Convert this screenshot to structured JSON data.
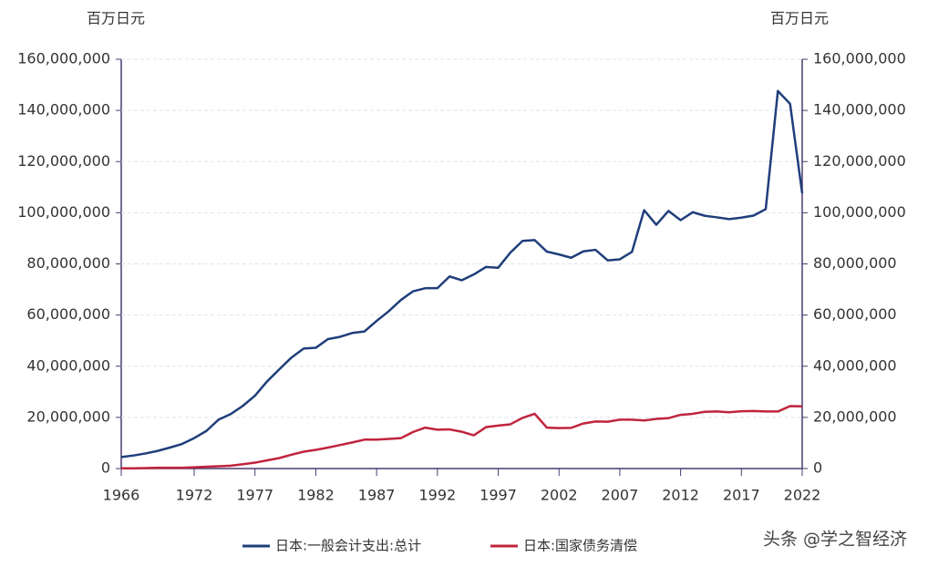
{
  "chart_data": {
    "type": "line",
    "y_unit_label": "百万日元",
    "y2_unit_label": "百万日元",
    "x": [
      1966,
      1967,
      1968,
      1969,
      1970,
      1971,
      1972,
      1973,
      1974,
      1975,
      1976,
      1977,
      1978,
      1979,
      1980,
      1981,
      1982,
      1983,
      1984,
      1985,
      1986,
      1987,
      1988,
      1989,
      1990,
      1991,
      1992,
      1993,
      1994,
      1995,
      1996,
      1997,
      1998,
      1999,
      2000,
      2001,
      2002,
      2003,
      2004,
      2005,
      2006,
      2007,
      2008,
      2009,
      2010,
      2011,
      2012,
      2013,
      2014,
      2015,
      2016,
      2017,
      2018,
      2019,
      2020,
      2021,
      2022
    ],
    "xlim": [
      1966,
      2022
    ],
    "xticks": [
      1966,
      1972,
      1977,
      1982,
      1987,
      1992,
      1997,
      2002,
      2007,
      2012,
      2017,
      2022
    ],
    "ylim": [
      0,
      160000000
    ],
    "y2lim": [
      0,
      160000000
    ],
    "yticks": [
      {
        "value": 0,
        "label": "0"
      },
      {
        "value": 20000000,
        "label": "20,000,000"
      },
      {
        "value": 40000000,
        "label": "40,000,000"
      },
      {
        "value": 60000000,
        "label": "60,000,000"
      },
      {
        "value": 80000000,
        "label": "80,000,000"
      },
      {
        "value": 100000000,
        "label": "100,000,000"
      },
      {
        "value": 120000000,
        "label": "120,000,000"
      },
      {
        "value": 140000000,
        "label": "140,000,000"
      },
      {
        "value": 160000000,
        "label": "160,000,000"
      }
    ],
    "y2ticks": [
      {
        "value": 0,
        "label": "0"
      },
      {
        "value": 20000000,
        "label": "20,000,000"
      },
      {
        "value": 40000000,
        "label": "40,000,000"
      },
      {
        "value": 60000000,
        "label": "60,000,000"
      },
      {
        "value": 80000000,
        "label": "80,000,000"
      },
      {
        "value": 100000000,
        "label": "100,000,000"
      },
      {
        "value": 120000000,
        "label": "120,000,000"
      },
      {
        "value": 140000000,
        "label": "140,000,000"
      },
      {
        "value": 160000000,
        "label": "160,000,000"
      }
    ],
    "grid": true,
    "series": [
      {
        "name": "日本:一般会计支出:总计",
        "color": "#1f3e7a",
        "values": [
          4500000,
          5100000,
          5900000,
          6900000,
          8200000,
          9600000,
          11900000,
          14700000,
          19100000,
          21300000,
          24500000,
          28500000,
          34100000,
          38800000,
          43400000,
          46900000,
          47200000,
          50600000,
          51500000,
          53000000,
          53600000,
          57700000,
          61500000,
          65900000,
          69300000,
          70500000,
          70500000,
          75100000,
          73600000,
          75900000,
          78800000,
          78500000,
          84400000,
          89000000,
          89300000,
          84800000,
          83700000,
          82400000,
          84900000,
          85500000,
          81400000,
          81800000,
          84700000,
          101000000,
          95300000,
          100700000,
          97100000,
          100200000,
          98800000,
          98200000,
          97500000,
          98100000,
          98900000,
          101400000,
          147600000,
          142600000,
          107600000
        ]
      },
      {
        "name": "日本:国家债务清偿",
        "color": "#c0243c",
        "values": [
          100000,
          100000,
          200000,
          300000,
          300000,
          300000,
          500000,
          700000,
          900000,
          1100000,
          1700000,
          2300000,
          3200000,
          4100000,
          5400000,
          6600000,
          7300000,
          8200000,
          9200000,
          10200000,
          11300000,
          11300000,
          11600000,
          11900000,
          14300000,
          16000000,
          15200000,
          15300000,
          14400000,
          13000000,
          16200000,
          16800000,
          17300000,
          19800000,
          21400000,
          16000000,
          15800000,
          15900000,
          17600000,
          18400000,
          18300000,
          19100000,
          19100000,
          18800000,
          19400000,
          19700000,
          21000000,
          21400000,
          22200000,
          22300000,
          22000000,
          22400000,
          22500000,
          22300000,
          22300000,
          24400000,
          24300000
        ]
      }
    ],
    "legend_position": "bottom",
    "watermark": "头条 @学之智经济"
  }
}
